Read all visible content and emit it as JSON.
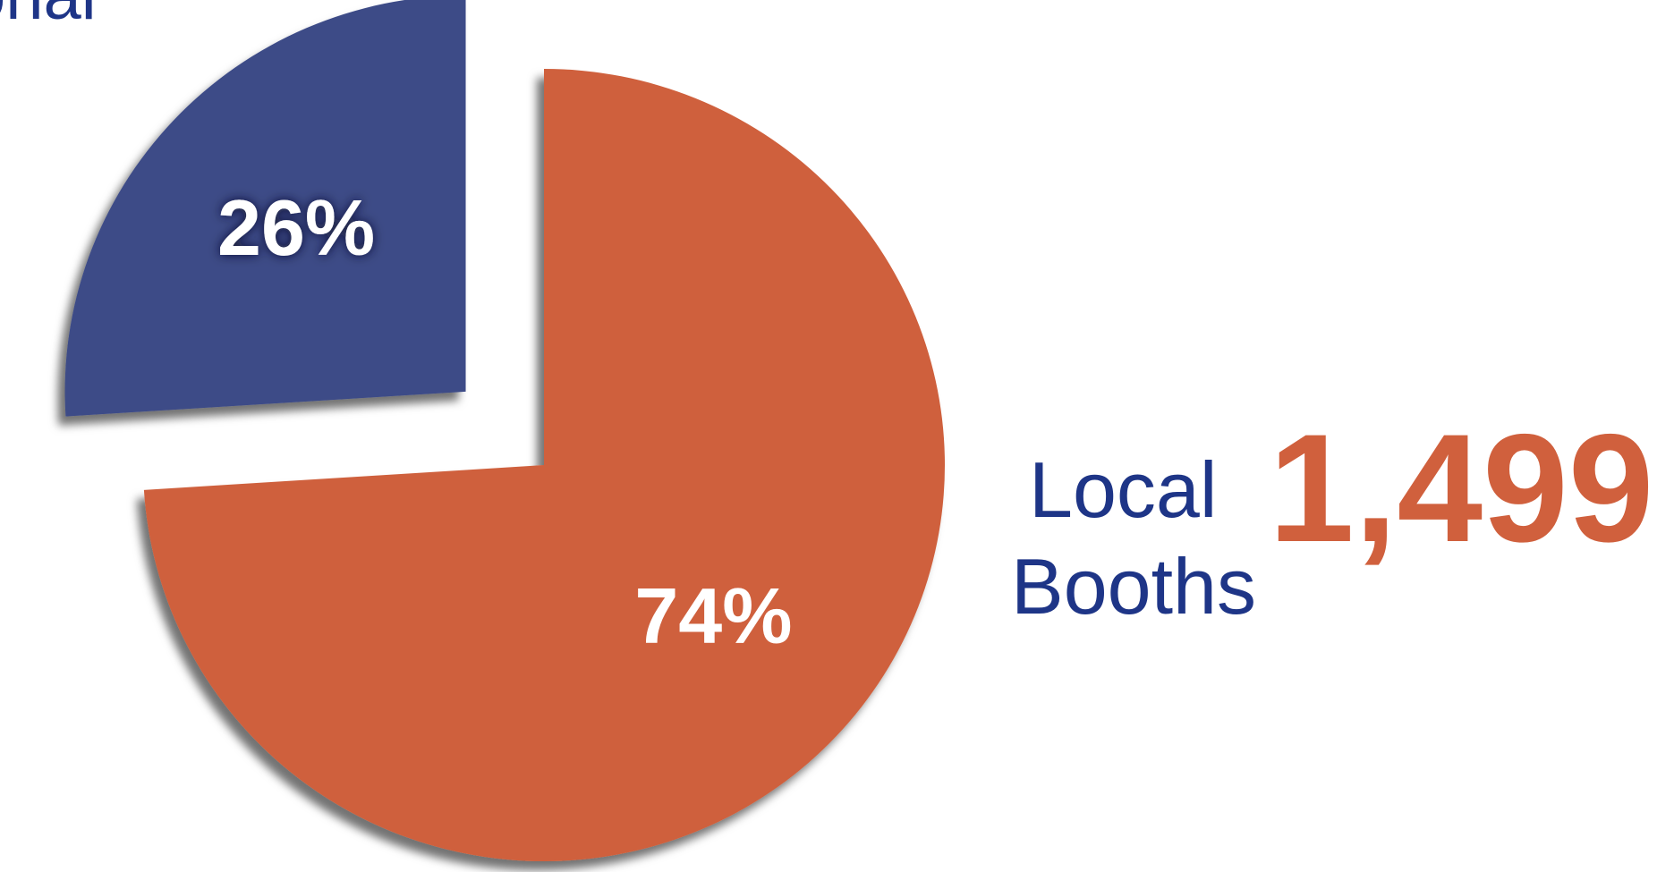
{
  "chart_data": {
    "type": "pie",
    "title": "",
    "slices": [
      {
        "name": "Local Booths",
        "value": 74,
        "label": "74%",
        "color": "#cf603c",
        "exploded": false
      },
      {
        "name": "",
        "value": 26,
        "label": "26%",
        "color": "#3e4b87",
        "exploded": true
      }
    ]
  },
  "labels": {
    "cut_off_label": "onal",
    "local": "Local",
    "booths": "Booths",
    "local_count": "1,499"
  },
  "colors": {
    "accent_orange": "#d0603d",
    "navy_text": "#1e3587",
    "slice_blue": "#3e4b87"
  }
}
